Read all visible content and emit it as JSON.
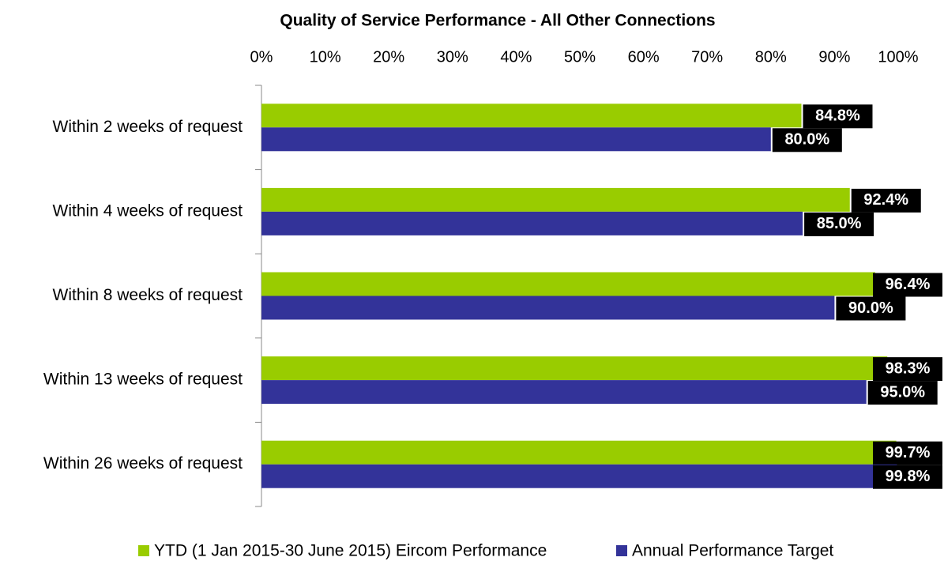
{
  "chart_data": {
    "type": "barh",
    "title": "Quality of Service Performance  - All Other Connections",
    "categories": [
      "Within 2 weeks of request",
      "Within 4 weeks of request",
      "Within 8 weeks of request",
      "Within 13 weeks of request",
      "Within 26 weeks of request"
    ],
    "series": [
      {
        "name": "YTD (1 Jan 2015-30 June 2015) Eircom Performance",
        "color": "#99cc00",
        "values": [
          84.8,
          92.4,
          96.4,
          98.3,
          99.7
        ],
        "value_labels": [
          "84.8%",
          "92.4%",
          "96.4%",
          "98.3%",
          "99.7%"
        ]
      },
      {
        "name": "Annual Performance Target",
        "color": "#333399",
        "values": [
          80.0,
          85.0,
          90.0,
          95.0,
          99.8
        ],
        "value_labels": [
          "80.0%",
          "85.0%",
          "90.0%",
          "95.0%",
          "99.8%"
        ]
      }
    ],
    "xlim": [
      0,
      100
    ],
    "xticks": [
      {
        "value": 0,
        "label": "0%"
      },
      {
        "value": 10,
        "label": "10%"
      },
      {
        "value": 20,
        "label": "20%"
      },
      {
        "value": 30,
        "label": "30%"
      },
      {
        "value": 40,
        "label": "40%"
      },
      {
        "value": 50,
        "label": "50%"
      },
      {
        "value": 60,
        "label": "60%"
      },
      {
        "value": 70,
        "label": "70%"
      },
      {
        "value": 80,
        "label": "80%"
      },
      {
        "value": 90,
        "label": "90%"
      },
      {
        "value": 100,
        "label": "100%"
      }
    ],
    "grid": false,
    "legend": "bottom"
  }
}
